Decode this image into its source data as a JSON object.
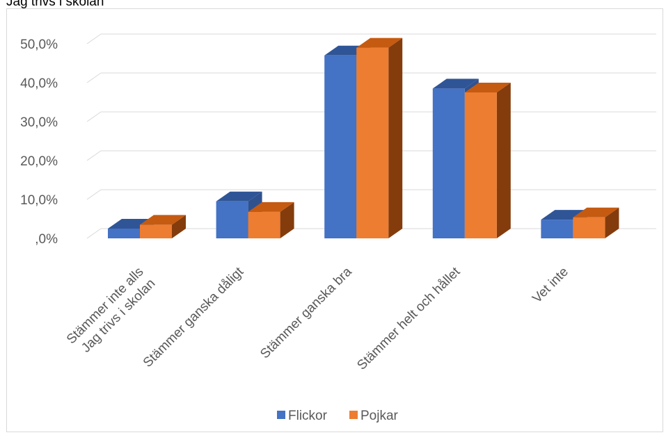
{
  "header": {
    "text": "Jag trivs i skolan"
  },
  "chart_data": {
    "type": "bar",
    "title": "",
    "xlabel": "",
    "ylabel": "",
    "categories": [
      [
        "Stämmer inte alls",
        "Jag trivs i skolan"
      ],
      [
        "Stämmer ganska dåligt"
      ],
      [
        "Stämmer ganska bra"
      ],
      [
        "Stämmer helt och hållet"
      ],
      [
        "Vet inte"
      ]
    ],
    "series": [
      {
        "name": "Flickor",
        "values": [
          2.5,
          9.5,
          47.0,
          38.5,
          4.8
        ],
        "color": "#4472C4",
        "side_color": "#2F528F",
        "top_color": "#2F5597"
      },
      {
        "name": "Pojkar",
        "values": [
          3.5,
          6.8,
          49.0,
          37.5,
          5.4
        ],
        "color": "#ED7D31",
        "side_color": "#843C0C",
        "top_color": "#C55A11"
      }
    ],
    "y_ticks": [
      ",0%",
      "10,0%",
      "20,0%",
      "30,0%",
      "40,0%",
      "50,0%"
    ],
    "ylim": [
      0,
      50
    ],
    "grid": true,
    "legend_position": "bottom",
    "three_d": true
  }
}
